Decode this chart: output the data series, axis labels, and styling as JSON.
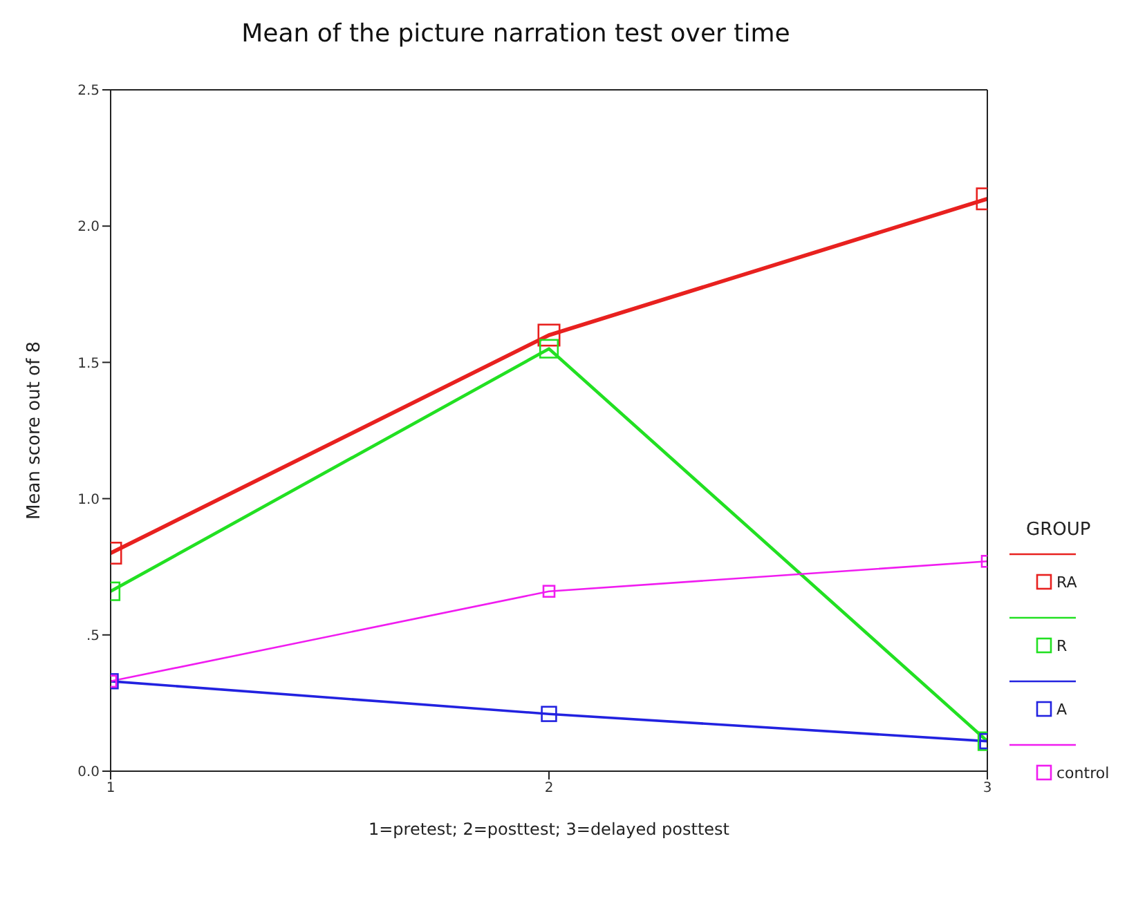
{
  "chart_data": {
    "type": "line",
    "title": "Mean of the picture narration test over time",
    "xlabel": "1=pretest; 2=posttest; 3=delayed posttest",
    "ylabel": "Mean score out of 8",
    "legend_title": "GROUP",
    "x": [
      1,
      2,
      3
    ],
    "xlim": [
      1,
      3
    ],
    "xticks": [
      1,
      2,
      3
    ],
    "ylim": [
      0,
      2.5
    ],
    "yticks": [
      {
        "value": 0,
        "label": "0.0"
      },
      {
        "value": 0.5,
        "label": ".5"
      },
      {
        "value": 1,
        "label": "1.0"
      },
      {
        "value": 1.5,
        "label": "1.5"
      },
      {
        "value": 2,
        "label": "2.0"
      },
      {
        "value": 2.5,
        "label": "2.5"
      }
    ],
    "series": [
      {
        "name": "RA",
        "color": "#e8211f",
        "values": [
          0.8,
          1.6,
          2.1
        ]
      },
      {
        "name": "R",
        "color": "#22e022",
        "values": [
          0.66,
          1.55,
          0.11
        ]
      },
      {
        "name": "A",
        "color": "#2222e0",
        "values": [
          0.33,
          0.21,
          0.11
        ]
      },
      {
        "name": "control",
        "color": "#f01cf0",
        "values": [
          0.33,
          0.66,
          0.77
        ]
      }
    ],
    "marker": "square",
    "line_style": "solid",
    "grid": false,
    "legend": "right"
  }
}
